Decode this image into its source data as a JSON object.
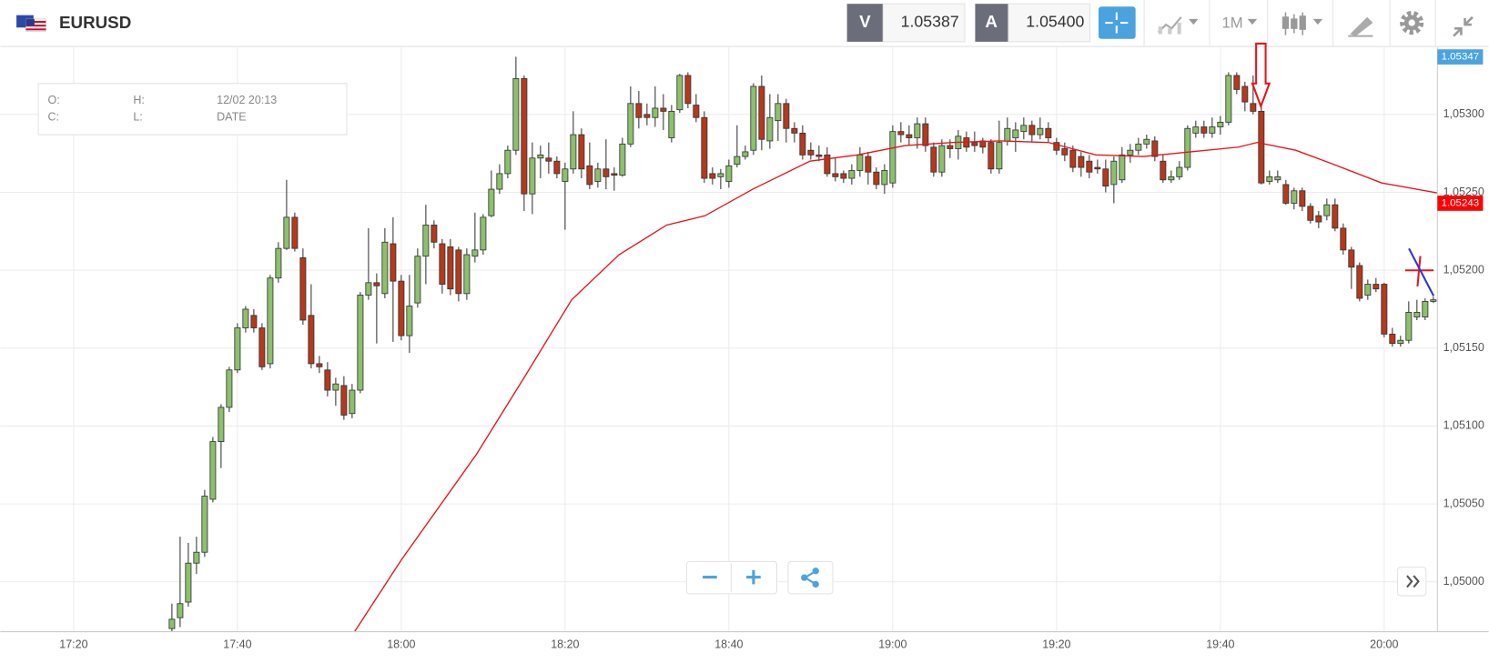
{
  "header": {
    "symbol": "EURUSD",
    "sell_label": "V",
    "sell_price": "1.05387",
    "buy_label": "A",
    "buy_price": "1.05400",
    "timeframe": "1M"
  },
  "info": {
    "o": "O:",
    "h": "H:",
    "date": "12/02 20:13",
    "c": "C:",
    "l": "L:",
    "date_label": "DATE"
  },
  "chart_data": {
    "type": "candlestick",
    "up_color": "#8cc06d",
    "down_color": "#b5391c",
    "xlim": [
      1031.05,
      1206.5
    ],
    "xticks": [
      {
        "value": 1040,
        "label": "17:20"
      },
      {
        "value": 1060,
        "label": "17:40"
      },
      {
        "value": 1080,
        "label": "18:00"
      },
      {
        "value": 1100,
        "label": "18:20"
      },
      {
        "value": 1120,
        "label": "18:40"
      },
      {
        "value": 1140,
        "label": "19:00"
      },
      {
        "value": 1160,
        "label": "19:20"
      },
      {
        "value": 1180,
        "label": "19:40"
      },
      {
        "value": 1200,
        "label": "20:00"
      }
    ],
    "ylim": [
      1.04968,
      1.05343
    ],
    "yticks": [
      {
        "value": 1.05,
        "label": "1,05000"
      },
      {
        "value": 1.0505,
        "label": "1,05050"
      },
      {
        "value": 1.051,
        "label": "1,05100"
      },
      {
        "value": 1.0515,
        "label": "1,05150"
      },
      {
        "value": 1.052,
        "label": "1,05200"
      },
      {
        "value": 1.0525,
        "label": "1,05250"
      },
      {
        "value": 1.053,
        "label": "1,05300"
      }
    ],
    "grid": true,
    "x": [
      1052,
      1053,
      1054,
      1055,
      1056,
      1057,
      1058,
      1059,
      1060,
      1061,
      1062,
      1063,
      1064,
      1065,
      1066,
      1067,
      1068,
      1069,
      1070,
      1071,
      1072,
      1073,
      1074,
      1075,
      1076,
      1077,
      1078,
      1079,
      1080,
      1081,
      1082,
      1083,
      1084,
      1085,
      1086,
      1087,
      1088,
      1089,
      1090,
      1091,
      1092,
      1093,
      1094,
      1095,
      1096,
      1097,
      1098,
      1099,
      1100,
      1101,
      1102,
      1103,
      1104,
      1105,
      1106,
      1107,
      1108,
      1109,
      1110,
      1111,
      1112,
      1113,
      1114,
      1115,
      1116,
      1117,
      1118,
      1119,
      1120,
      1121,
      1122,
      1123,
      1124,
      1125,
      1126,
      1127,
      1128,
      1129,
      1130,
      1131,
      1132,
      1133,
      1134,
      1135,
      1136,
      1137,
      1138,
      1139,
      1140,
      1141,
      1142,
      1143,
      1144,
      1145,
      1146,
      1147,
      1148,
      1149,
      1150,
      1151,
      1152,
      1153,
      1154,
      1155,
      1156,
      1157,
      1158,
      1159,
      1160,
      1161,
      1162,
      1163,
      1164,
      1165,
      1166,
      1167,
      1168,
      1169,
      1170,
      1171,
      1172,
      1173,
      1174,
      1175,
      1176,
      1177,
      1178,
      1179,
      1180,
      1181,
      1182,
      1183,
      1184,
      1185,
      1186,
      1187,
      1188,
      1189,
      1190,
      1191,
      1192,
      1193,
      1194,
      1195,
      1196,
      1197,
      1198,
      1199,
      1200,
      1201,
      1202,
      1203,
      1204,
      1205,
      1206
    ],
    "open": [
      1.0497,
      1.04977,
      1.04987,
      1.05012,
      1.05019,
      1.05053,
      1.0509,
      1.05112,
      1.05136,
      1.05163,
      1.05171,
      1.05163,
      1.0514,
      1.05195,
      1.05214,
      1.05234,
      1.05208,
      1.05171,
      1.0514,
      1.05136,
      1.05123,
      1.05126,
      1.05108,
      1.05123,
      1.05184,
      1.05192,
      1.05185,
      1.05217,
      1.05193,
      1.05158,
      1.05179,
      1.05209,
      1.05229,
      1.05217,
      1.05215,
      1.05213,
      1.05185,
      1.05209,
      1.05213,
      1.05235,
      1.05252,
      1.05262,
      1.05277,
      1.05323,
      1.05249,
      1.05272,
      1.05272,
      1.0527,
      1.05257,
      1.05265,
      1.05287,
      1.05267,
      1.05257,
      1.05265,
      1.05262,
      1.05261,
      1.05281,
      1.05307,
      1.053,
      1.05298,
      1.05304,
      1.05285,
      1.05303,
      1.05325,
      1.05306,
      1.05298,
      1.05262,
      1.0526,
      1.05257,
      1.05268,
      1.05273,
      1.05277,
      1.05318,
      1.05283,
      1.05296,
      1.05307,
      1.05291,
      1.05288,
      1.05277,
      1.05274,
      1.05274,
      1.05262,
      1.05262,
      1.05259,
      1.05264,
      1.05273,
      1.05263,
      1.05255,
      1.05256,
      1.05289,
      1.05287,
      1.05285,
      1.05294,
      1.05279,
      1.05263,
      1.0528,
      1.05278,
      1.05285,
      1.05282,
      1.05283,
      1.05282,
      1.05265,
      1.05283,
      1.05285,
      1.05289,
      1.05293,
      1.05287,
      1.05291,
      1.05282,
      1.05278,
      1.05277,
      1.05273,
      1.0527,
      1.05266,
      1.05265,
      1.05255,
      1.05258,
      1.05274,
      1.05277,
      1.05281,
      1.05283,
      1.0527,
      1.05258,
      1.0526,
      1.05266,
      1.05288,
      1.05292,
      1.05288,
      1.05292,
      1.05295,
      1.05325,
      1.05318,
      1.05307,
      1.05302,
      1.05257,
      1.05258,
      1.05255,
      1.05243,
      1.05251,
      1.05241,
      1.05235,
      1.05235,
      1.05242,
      1.05227,
      1.05213,
      1.05203,
      1.05184,
      1.05191,
      1.05191,
      1.05159,
      1.05153,
      1.05155,
      1.0517,
      1.0517,
      1.0518
    ],
    "high": [
      1.04986,
      1.05029,
      1.05025,
      1.05029,
      1.05059,
      1.05093,
      1.05114,
      1.05138,
      1.05166,
      1.05177,
      1.05175,
      1.05166,
      1.05197,
      1.05218,
      1.05258,
      1.05237,
      1.05214,
      1.05191,
      1.05145,
      1.05141,
      1.05131,
      1.05132,
      1.05127,
      1.05186,
      1.05227,
      1.05198,
      1.05227,
      1.05234,
      1.05197,
      1.05197,
      1.05214,
      1.05242,
      1.05232,
      1.0522,
      1.0522,
      1.05215,
      1.05214,
      1.05237,
      1.05236,
      1.05264,
      1.05268,
      1.0528,
      1.05337,
      1.05325,
      1.05282,
      1.0528,
      1.05282,
      1.05273,
      1.05269,
      1.05302,
      1.05291,
      1.05282,
      1.05269,
      1.05284,
      1.05266,
      1.05285,
      1.05318,
      1.05315,
      1.05307,
      1.05318,
      1.05313,
      1.05306,
      1.05326,
      1.05327,
      1.05313,
      1.05302,
      1.05266,
      1.05265,
      1.05271,
      1.05293,
      1.0528,
      1.0532,
      1.05325,
      1.05313,
      1.05313,
      1.0531,
      1.05295,
      1.05293,
      1.05282,
      1.0528,
      1.05279,
      1.05272,
      1.05264,
      1.05268,
      1.05279,
      1.05276,
      1.05266,
      1.05268,
      1.05293,
      1.05295,
      1.05293,
      1.05298,
      1.05298,
      1.05282,
      1.05284,
      1.05284,
      1.0529,
      1.05289,
      1.05289,
      1.05285,
      1.05284,
      1.05296,
      1.05298,
      1.05295,
      1.05298,
      1.05296,
      1.05298,
      1.05295,
      1.05285,
      1.05282,
      1.0528,
      1.05276,
      1.05274,
      1.05271,
      1.05271,
      1.05273,
      1.05279,
      1.05281,
      1.05285,
      1.05287,
      1.05286,
      1.05274,
      1.05264,
      1.0527,
      1.05293,
      1.05296,
      1.05296,
      1.05298,
      1.05299,
      1.05327,
      1.05327,
      1.05321,
      1.05325,
      1.05306,
      1.05264,
      1.05264,
      1.05258,
      1.05253,
      1.05253,
      1.05243,
      1.05238,
      1.05246,
      1.05246,
      1.0523,
      1.05215,
      1.05205,
      1.05194,
      1.05195,
      1.05192,
      1.05163,
      1.05158,
      1.0518,
      1.05181,
      1.05182,
      1.05183
    ],
    "low": [
      1.04967,
      1.04971,
      1.04984,
      1.05005,
      1.05016,
      1.05051,
      1.05073,
      1.05109,
      1.05134,
      1.0516,
      1.0516,
      1.05136,
      1.05137,
      1.05192,
      1.05213,
      1.05212,
      1.05165,
      1.05137,
      1.05134,
      1.05119,
      1.05113,
      1.05104,
      1.05105,
      1.05121,
      1.05181,
      1.05153,
      1.05182,
      1.05154,
      1.05155,
      1.05147,
      1.05176,
      1.05191,
      1.05214,
      1.05185,
      1.05184,
      1.0518,
      1.05181,
      1.05205,
      1.0521,
      1.05234,
      1.05249,
      1.05259,
      1.05274,
      1.05238,
      1.05236,
      1.05259,
      1.05262,
      1.05259,
      1.05226,
      1.05262,
      1.05259,
      1.05252,
      1.05253,
      1.05252,
      1.05251,
      1.0526,
      1.05279,
      1.05291,
      1.05293,
      1.05292,
      1.0529,
      1.05282,
      1.05301,
      1.05304,
      1.05295,
      1.05256,
      1.05255,
      1.05252,
      1.05253,
      1.05266,
      1.05271,
      1.05274,
      1.05277,
      1.05278,
      1.05283,
      1.05282,
      1.05282,
      1.05271,
      1.05271,
      1.0527,
      1.0526,
      1.05257,
      1.05256,
      1.05255,
      1.0526,
      1.05255,
      1.05252,
      1.05249,
      1.05253,
      1.05282,
      1.0528,
      1.05278,
      1.05276,
      1.0526,
      1.0526,
      1.05272,
      1.05271,
      1.05276,
      1.05276,
      1.05275,
      1.05262,
      1.05262,
      1.0528,
      1.05276,
      1.05284,
      1.05282,
      1.05284,
      1.05282,
      1.05274,
      1.0527,
      1.05263,
      1.0526,
      1.05259,
      1.05262,
      1.0525,
      1.05243,
      1.05256,
      1.05269,
      1.05274,
      1.05278,
      1.0527,
      1.05256,
      1.05256,
      1.05258,
      1.05264,
      1.05285,
      1.05285,
      1.05285,
      1.05287,
      1.05293,
      1.05313,
      1.05302,
      1.053,
      1.05255,
      1.05255,
      1.05256,
      1.05242,
      1.05239,
      1.05238,
      1.0523,
      1.05227,
      1.05232,
      1.05225,
      1.0521,
      1.05188,
      1.0518,
      1.05181,
      1.05186,
      1.05157,
      1.05151,
      1.05151,
      1.05153,
      1.05168,
      1.05168,
      1.05179
    ],
    "close": [
      1.04976,
      1.04986,
      1.05012,
      1.05019,
      1.05055,
      1.0509,
      1.05112,
      1.05136,
      1.05163,
      1.05175,
      1.05163,
      1.05138,
      1.05195,
      1.05214,
      1.05234,
      1.05214,
      1.05168,
      1.0514,
      1.05138,
      1.05123,
      1.05127,
      1.05107,
      1.05123,
      1.05184,
      1.05192,
      1.0519,
      1.05218,
      1.05193,
      1.05158,
      1.05177,
      1.05209,
      1.05229,
      1.05218,
      1.05191,
      1.05188,
      1.05185,
      1.0521,
      1.05213,
      1.05234,
      1.05252,
      1.05262,
      1.05277,
      1.05323,
      1.05249,
      1.05272,
      1.05274,
      1.0527,
      1.05262,
      1.05265,
      1.05287,
      1.05265,
      1.05255,
      1.05265,
      1.0526,
      1.05261,
      1.05281,
      1.05307,
      1.05298,
      1.05298,
      1.05304,
      1.05302,
      1.05302,
      1.05325,
      1.05307,
      1.05298,
      1.05259,
      1.05259,
      1.05262,
      1.05267,
      1.05273,
      1.05276,
      1.05318,
      1.05284,
      1.05298,
      1.05307,
      1.05291,
      1.05288,
      1.05274,
      1.05274,
      1.05273,
      1.05262,
      1.0526,
      1.05259,
      1.05264,
      1.05274,
      1.05263,
      1.05255,
      1.05264,
      1.05289,
      1.05287,
      1.05285,
      1.05294,
      1.0528,
      1.05263,
      1.0528,
      1.05278,
      1.05286,
      1.05279,
      1.0528,
      1.05279,
      1.05265,
      1.05282,
      1.05291,
      1.0529,
      1.05293,
      1.05287,
      1.05291,
      1.05285,
      1.05277,
      1.05274,
      1.05266,
      1.05266,
      1.05263,
      1.05265,
      1.05254,
      1.0527,
      1.05274,
      1.05277,
      1.05281,
      1.05284,
      1.05273,
      1.05258,
      1.0526,
      1.05266,
      1.05291,
      1.05292,
      1.05288,
      1.05292,
      1.05295,
      1.05325,
      1.05316,
      1.05308,
      1.05302,
      1.05256,
      1.0526,
      1.0526,
      1.05243,
      1.05251,
      1.05241,
      1.05232,
      1.05231,
      1.05242,
      1.05227,
      1.05213,
      1.05202,
      1.05182,
      1.05191,
      1.05188,
      1.05159,
      1.05153,
      1.05155,
      1.05173,
      1.05173,
      1.0518,
      1.05181
    ],
    "moving_average": {
      "color": "#e8141a",
      "x": [
        1074.3,
        1080,
        1089.2,
        1095,
        1100.8,
        1106.6,
        1112.4,
        1117.1,
        1122.9,
        1129.9,
        1135.7,
        1141.5,
        1147.3,
        1153.1,
        1159,
        1164.8,
        1170.6,
        1176.4,
        1182.2,
        1184.5,
        1189.2,
        1193.8,
        1199.7,
        1207.1
      ],
      "values": [
        1.04968,
        1.05014,
        1.05082,
        1.05131,
        1.05181,
        1.0521,
        1.05229,
        1.05235,
        1.05252,
        1.0527,
        1.05274,
        1.0528,
        1.05282,
        1.05283,
        1.05282,
        1.05274,
        1.05273,
        1.05276,
        1.05279,
        1.05282,
        1.05277,
        1.05268,
        1.05256,
        1.05249
      ]
    },
    "price_tags": [
      1.05347,
      1.05243
    ],
    "price_tag_colors": [
      "#4aa3df",
      "#ff0000"
    ]
  }
}
